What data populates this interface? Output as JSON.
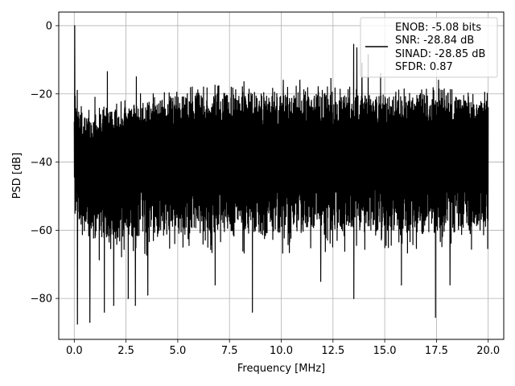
{
  "chart_data": {
    "type": "line",
    "title": "",
    "xlabel": "Frequency [MHz]",
    "ylabel": "PSD [dB]",
    "xlim": [
      -0.75,
      20.75
    ],
    "ylim": [
      -92,
      4
    ],
    "xticks": [
      0.0,
      2.5,
      5.0,
      7.5,
      10.0,
      12.5,
      15.0,
      17.5,
      20.0
    ],
    "xtick_labels": [
      "0.0",
      "2.5",
      "5.0",
      "7.5",
      "10.0",
      "12.5",
      "15.0",
      "17.5",
      "20.0"
    ],
    "yticks": [
      0,
      -20,
      -40,
      -60,
      -80
    ],
    "ytick_labels": [
      "0",
      "−20",
      "−40",
      "−60",
      "−80"
    ],
    "grid": true,
    "legend_position": "top-right",
    "legend_lines": [
      "ENOB: -5.08 bits",
      "SNR: -28.84 dB",
      "SINAD: -28.85 dB",
      "SFDR: 0.87"
    ],
    "series": [
      {
        "color": "#000000",
        "x_range": [
          0.0,
          20.0
        ],
        "envelope_top": [
          [
            0.0,
            -24
          ],
          [
            0.1,
            -22
          ],
          [
            0.4,
            -26
          ],
          [
            1.0,
            -26
          ],
          [
            2.0,
            -25
          ],
          [
            3.0,
            -23
          ],
          [
            4.0,
            -22
          ],
          [
            5.0,
            -21
          ],
          [
            6.0,
            -20
          ],
          [
            8.0,
            -20
          ],
          [
            10.0,
            -20
          ],
          [
            12.0,
            -20
          ],
          [
            14.0,
            -20.5
          ],
          [
            16.0,
            -20
          ],
          [
            18.0,
            -21
          ],
          [
            20.0,
            -22
          ]
        ],
        "envelope_bottom": [
          [
            0.0,
            -55
          ],
          [
            0.3,
            -60
          ],
          [
            1.0,
            -63
          ],
          [
            3.0,
            -62
          ],
          [
            6.0,
            -61
          ],
          [
            10.0,
            -61
          ],
          [
            14.0,
            -60
          ],
          [
            17.0,
            -61
          ],
          [
            20.0,
            -60
          ]
        ],
        "peaks": [
          {
            "x": 0.02,
            "y": 0
          },
          {
            "x": 0.15,
            "y": -19
          },
          {
            "x": 1.0,
            "y": -21
          },
          {
            "x": 1.6,
            "y": -13.5
          },
          {
            "x": 2.05,
            "y": -23
          },
          {
            "x": 3.0,
            "y": -15
          },
          {
            "x": 3.2,
            "y": -20
          },
          {
            "x": 5.7,
            "y": -18
          },
          {
            "x": 6.8,
            "y": -17.5
          },
          {
            "x": 8.2,
            "y": -16.5
          },
          {
            "x": 10.1,
            "y": -16
          },
          {
            "x": 10.9,
            "y": -16
          },
          {
            "x": 12.4,
            "y": -15.5
          },
          {
            "x": 13.5,
            "y": -5.5
          },
          {
            "x": 13.65,
            "y": -6.5
          },
          {
            "x": 13.9,
            "y": -11
          },
          {
            "x": 14.2,
            "y": -8.5
          },
          {
            "x": 14.8,
            "y": -14
          },
          {
            "x": 17.6,
            "y": -16
          }
        ],
        "dips": [
          {
            "x": 0.15,
            "y": -87.5
          },
          {
            "x": 0.75,
            "y": -87
          },
          {
            "x": 1.45,
            "y": -84
          },
          {
            "x": 1.9,
            "y": -82
          },
          {
            "x": 2.6,
            "y": -80
          },
          {
            "x": 2.95,
            "y": -82
          },
          {
            "x": 3.55,
            "y": -79
          },
          {
            "x": 6.8,
            "y": -76
          },
          {
            "x": 8.6,
            "y": -84
          },
          {
            "x": 11.9,
            "y": -75
          },
          {
            "x": 13.5,
            "y": -80
          },
          {
            "x": 15.8,
            "y": -76
          },
          {
            "x": 17.45,
            "y": -85.5
          },
          {
            "x": 18.15,
            "y": -76
          }
        ]
      }
    ]
  }
}
